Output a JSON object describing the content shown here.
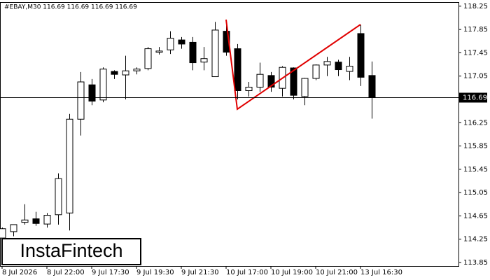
{
  "chart_data": {
    "type": "candlestick",
    "header": "#EBAY,M30  116.69 116.69 116.69 116.69",
    "watermark": "InstaFintech",
    "categories": [
      "8 Jul 2026",
      null,
      null,
      null,
      "8 Jul 22:00",
      null,
      null,
      null,
      "9 Jul 17:30",
      null,
      null,
      null,
      "9 Jul 19:30",
      null,
      null,
      null,
      "9 Jul 21:30",
      null,
      null,
      null,
      "10 Jul 17:00",
      null,
      null,
      null,
      "10 Jul 19:00",
      null,
      null,
      null,
      "10 Jul 21:00",
      null,
      null,
      null,
      "13 Jul 16:30",
      null
    ],
    "open": [
      114.27,
      114.38,
      114.54,
      114.6,
      114.51,
      114.67,
      114.7,
      116.31,
      116.9,
      116.64,
      117.13,
      117.07,
      117.14,
      117.18,
      117.46,
      117.5,
      117.67,
      117.63,
      117.29,
      117.04,
      117.82,
      117.52,
      116.8,
      116.86,
      117.06,
      116.84,
      117.19,
      116.7,
      117.01,
      117.24,
      117.29,
      117.13,
      117.78,
      117.06
    ],
    "high": [
      114.45,
      114.5,
      114.85,
      114.72,
      114.7,
      115.38,
      116.4,
      117.12,
      117.0,
      117.2,
      117.15,
      117.4,
      117.2,
      117.55,
      117.55,
      117.82,
      117.72,
      117.72,
      117.55,
      117.98,
      117.98,
      117.6,
      116.95,
      117.28,
      117.12,
      117.22,
      117.2,
      117.02,
      117.25,
      117.38,
      117.33,
      117.38,
      117.93,
      117.3
    ],
    "low": [
      114.2,
      114.3,
      114.5,
      114.48,
      114.45,
      114.5,
      114.4,
      116.03,
      116.55,
      116.6,
      117.0,
      116.65,
      117.08,
      117.15,
      117.42,
      117.43,
      117.52,
      117.15,
      117.15,
      117.04,
      117.4,
      116.65,
      116.7,
      116.78,
      116.78,
      116.7,
      116.65,
      116.55,
      116.98,
      117.05,
      117.05,
      116.98,
      116.88,
      116.32
    ],
    "close": [
      114.43,
      114.5,
      114.58,
      114.52,
      114.66,
      115.29,
      116.31,
      116.95,
      116.62,
      117.17,
      117.08,
      117.14,
      117.17,
      117.52,
      117.48,
      117.7,
      117.6,
      117.28,
      117.35,
      117.84,
      117.46,
      116.8,
      116.86,
      117.08,
      116.86,
      117.2,
      116.72,
      117.01,
      117.24,
      117.3,
      117.16,
      117.22,
      117.03,
      116.69
    ],
    "up_color": "#ffffff",
    "down_color": "#000000",
    "current_price": 116.69,
    "ylim": [
      113.79,
      118.32
    ],
    "yticks": [
      113.85,
      114.25,
      114.65,
      115.05,
      115.45,
      115.85,
      116.25,
      117.05,
      117.45,
      117.85,
      118.25
    ]
  }
}
